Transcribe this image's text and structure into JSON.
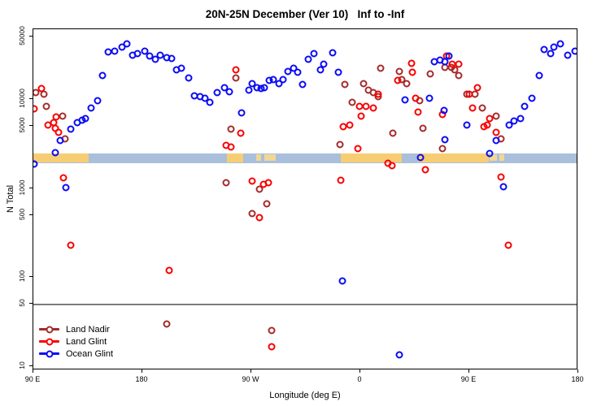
{
  "title": "20N-25N December (Ver 10)   Inf to -Inf",
  "chart_data": {
    "type": "scatter",
    "title": "20N-25N December (Ver 10)   Inf to -Inf",
    "x_axis": {
      "label": "Longitude (deg E)",
      "note": "axis wraps eastward from 90E through 180, 90W, 0, 90E to 180 (450 deg span)",
      "range_deg": [
        90,
        540
      ],
      "ticks": [
        {
          "deg": 90,
          "label": "90 E"
        },
        {
          "deg": 180,
          "label": "180"
        },
        {
          "deg": 270,
          "label": "90 W"
        },
        {
          "deg": 360,
          "label": "0"
        },
        {
          "deg": 450,
          "label": "90 E"
        },
        {
          "deg": 540,
          "label": "180"
        }
      ]
    },
    "y_axis": {
      "label": "N Total",
      "scale": "log10",
      "range": [
        9,
        61000
      ],
      "ticks": [
        10,
        50,
        100,
        500,
        1000,
        5000,
        10000,
        50000
      ]
    },
    "reference_line_y": 50,
    "map_strip": {
      "description": "land/ocean map band for 20N-25N plotted across longitude",
      "value_range": [
        1900,
        2445
      ],
      "ocean_color": "#A9BFDC",
      "land_color": "#F7CD74",
      "island_color": "#F2D694",
      "land_segments_deg": [
        [
          90,
          136
        ],
        [
          250,
          263
        ],
        [
          344,
          394
        ],
        [
          408,
          466
        ]
      ],
      "island_segments_deg": [
        [
          274,
          278
        ],
        [
          281,
          290
        ],
        [
          467,
          473
        ],
        [
          475,
          479
        ]
      ]
    },
    "legend_position": "bottom-left",
    "series": [
      {
        "name": "Land Nadir",
        "color": "#A52A2A",
        "points": [
          [
            92,
            11800
          ],
          [
            99,
            11300
          ],
          [
            101,
            8260
          ],
          [
            114,
            6400
          ],
          [
            116,
            3550
          ],
          [
            200,
            30
          ],
          [
            249,
            1150
          ],
          [
            253,
            4580
          ],
          [
            257,
            17200
          ],
          [
            271,
            520
          ],
          [
            277,
            975
          ],
          [
            283,
            665
          ],
          [
            287,
            25
          ],
          [
            343,
            3080
          ],
          [
            347,
            14700
          ],
          [
            353,
            9180
          ],
          [
            363,
            15000
          ],
          [
            367,
            12600
          ],
          [
            371,
            11800
          ],
          [
            375,
            10700
          ],
          [
            377,
            22200
          ],
          [
            387,
            4120
          ],
          [
            392,
            20400
          ],
          [
            394,
            16600
          ],
          [
            398,
            15000
          ],
          [
            409,
            9580
          ],
          [
            412,
            4690
          ],
          [
            418,
            19100
          ],
          [
            428,
            2780
          ],
          [
            430,
            22800
          ],
          [
            435,
            22800
          ],
          [
            438,
            21300
          ],
          [
            441,
            18400
          ],
          [
            448,
            11300
          ],
          [
            455,
            11300
          ],
          [
            461,
            7920
          ],
          [
            472,
            6400
          ],
          [
            476,
            3550
          ]
        ]
      },
      {
        "name": "Land Glint",
        "color": "#F80000",
        "points": [
          [
            91,
            7760
          ],
          [
            97,
            13100
          ],
          [
            102,
            5150
          ],
          [
            107,
            5430
          ],
          [
            108,
            4690
          ],
          [
            109,
            6310
          ],
          [
            111,
            4220
          ],
          [
            115,
            1300
          ],
          [
            121,
            228
          ],
          [
            202,
            119
          ],
          [
            249,
            3010
          ],
          [
            253,
            2890
          ],
          [
            257,
            21300
          ],
          [
            261,
            4120
          ],
          [
            271,
            1200
          ],
          [
            277,
            465
          ],
          [
            280,
            1100
          ],
          [
            284,
            1150
          ],
          [
            287,
            16.6
          ],
          [
            344,
            1220
          ],
          [
            346,
            4890
          ],
          [
            351,
            5150
          ],
          [
            358,
            2780
          ],
          [
            359,
            8260
          ],
          [
            361,
            6400
          ],
          [
            365,
            8260
          ],
          [
            371,
            7920
          ],
          [
            375,
            11300
          ],
          [
            383,
            1900
          ],
          [
            386,
            1790
          ],
          [
            391,
            16200
          ],
          [
            402,
            25200
          ],
          [
            403,
            19900
          ],
          [
            406,
            10200
          ],
          [
            408,
            7130
          ],
          [
            414,
            1610
          ],
          [
            428,
            6700
          ],
          [
            431,
            30300
          ],
          [
            436,
            24700
          ],
          [
            441,
            24700
          ],
          [
            450,
            11300
          ],
          [
            453,
            7920
          ],
          [
            457,
            13400
          ],
          [
            462,
            4890
          ],
          [
            465,
            5150
          ],
          [
            467,
            6030
          ],
          [
            472,
            4220
          ],
          [
            476,
            1330
          ],
          [
            482,
            228
          ]
        ]
      },
      {
        "name": "Ocean Glint",
        "color": "#0A0AF5",
        "points": [
          [
            91,
            1850
          ],
          [
            108,
            2490
          ],
          [
            112,
            3420
          ],
          [
            117,
            1010
          ],
          [
            121,
            4580
          ],
          [
            126,
            5430
          ],
          [
            130,
            5770
          ],
          [
            133,
            6030
          ],
          [
            138,
            7920
          ],
          [
            143,
            9580
          ],
          [
            147,
            18400
          ],
          [
            152,
            33700
          ],
          [
            157,
            34500
          ],
          [
            163,
            38300
          ],
          [
            167,
            41600
          ],
          [
            172,
            31000
          ],
          [
            176,
            32300
          ],
          [
            182,
            34500
          ],
          [
            186,
            30300
          ],
          [
            191,
            27900
          ],
          [
            195,
            31000
          ],
          [
            200,
            29100
          ],
          [
            204,
            28400
          ],
          [
            208,
            21300
          ],
          [
            212,
            22200
          ],
          [
            218,
            17200
          ],
          [
            223,
            10900
          ],
          [
            228,
            10700
          ],
          [
            232,
            10200
          ],
          [
            236,
            9180
          ],
          [
            242,
            11800
          ],
          [
            248,
            13400
          ],
          [
            252,
            12100
          ],
          [
            262,
            6980
          ],
          [
            268,
            12600
          ],
          [
            271,
            14900
          ],
          [
            275,
            13400
          ],
          [
            278,
            13100
          ],
          [
            281,
            13400
          ],
          [
            285,
            16200
          ],
          [
            288,
            16600
          ],
          [
            293,
            14900
          ],
          [
            296,
            16600
          ],
          [
            300,
            20400
          ],
          [
            305,
            22200
          ],
          [
            308,
            19900
          ],
          [
            312,
            14600
          ],
          [
            317,
            27700
          ],
          [
            322,
            32300
          ],
          [
            327,
            21300
          ],
          [
            330,
            24700
          ],
          [
            337,
            33000
          ],
          [
            342,
            19900
          ],
          [
            345,
            91
          ],
          [
            392,
            13.4
          ],
          [
            397,
            9780
          ],
          [
            410,
            2200
          ],
          [
            417,
            10200
          ],
          [
            421,
            26200
          ],
          [
            426,
            27300
          ],
          [
            429,
            7430
          ],
          [
            430,
            26200
          ],
          [
            430,
            3480
          ],
          [
            433,
            30300
          ],
          [
            448,
            5100
          ],
          [
            467,
            2440
          ],
          [
            472,
            3420
          ],
          [
            478,
            1030
          ],
          [
            483,
            5100
          ],
          [
            487,
            5650
          ],
          [
            492,
            6030
          ],
          [
            496,
            8260
          ],
          [
            502,
            10200
          ],
          [
            508,
            18400
          ],
          [
            512,
            36000
          ],
          [
            517,
            32300
          ],
          [
            520,
            38300
          ],
          [
            525,
            41600
          ],
          [
            531,
            31000
          ],
          [
            537,
            34500
          ]
        ]
      }
    ]
  },
  "legend": {
    "items": [
      {
        "label": "Land Nadir"
      },
      {
        "label": "Land Glint"
      },
      {
        "label": "Ocean Glint"
      }
    ]
  }
}
